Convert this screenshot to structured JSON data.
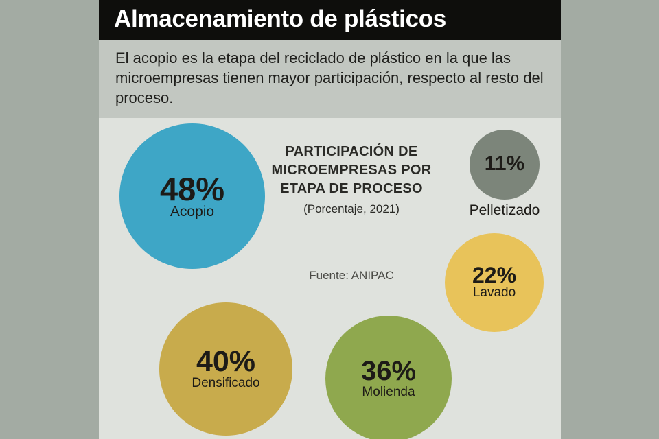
{
  "header": {
    "title": "Almacenamiento de plásticos",
    "intro": "El acopio es la etapa del reciclado de plástico en la que las microempresas tienen mayor participación, respecto al resto del proceso."
  },
  "chart": {
    "title": "PARTICIPACIÓN DE MICROEMPRESAS POR ETAPA DE PROCESO",
    "subtitle": "(Porcentaje, 2021)",
    "source": "Fuente: ANIPAC"
  },
  "chart_data": {
    "type": "bubble",
    "title": "PARTICIPACIÓN DE MICROEMPRESAS POR ETAPA DE PROCESO",
    "subtitle": "(Porcentaje, 2021)",
    "unit": "%",
    "categories": [
      "Acopio",
      "Densificado",
      "Molienda",
      "Lavado",
      "Pelletizado"
    ],
    "values": [
      48,
      40,
      36,
      22,
      11
    ],
    "value_labels": [
      "48%",
      "40%",
      "36%",
      "22%",
      "11%"
    ],
    "colors": [
      "#3ea6c6",
      "#c8ab4c",
      "#8fa84e",
      "#e8c35a",
      "#7c857a"
    ]
  }
}
